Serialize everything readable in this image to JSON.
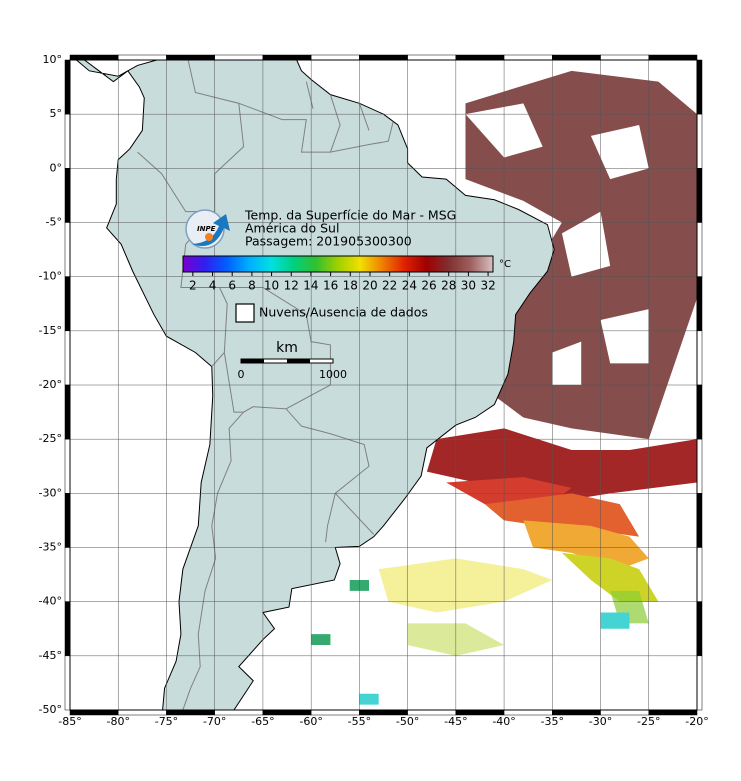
{
  "map": {
    "title": "Temp. da Superfície do Mar - MSG",
    "subtitle": "América do Sul",
    "pass": "Passagem: 201905300300",
    "logo": "INPE",
    "xlim": [
      -85,
      -20
    ],
    "ylim": [
      -50,
      10
    ],
    "xticks": [
      {
        "value": -85,
        "label": "-85°"
      },
      {
        "value": -80,
        "label": "-80°"
      },
      {
        "value": -75,
        "label": "-75°"
      },
      {
        "value": -70,
        "label": "-70°"
      },
      {
        "value": -65,
        "label": "-65°"
      },
      {
        "value": -60,
        "label": "-60°"
      },
      {
        "value": -55,
        "label": "-55°"
      },
      {
        "value": -50,
        "label": "-50°"
      },
      {
        "value": -45,
        "label": "-45°"
      },
      {
        "value": -40,
        "label": "-40°"
      },
      {
        "value": -35,
        "label": "-35°"
      },
      {
        "value": -30,
        "label": "-30°"
      },
      {
        "value": -25,
        "label": "-25°"
      },
      {
        "value": -20,
        "label": "-20°"
      }
    ],
    "yticks": [
      {
        "value": 10,
        "label": "10°"
      },
      {
        "value": 5,
        "label": "5°"
      },
      {
        "value": 0,
        "label": "0°"
      },
      {
        "value": -5,
        "label": "-5°"
      },
      {
        "value": -10,
        "label": "-10°"
      },
      {
        "value": -15,
        "label": "-15°"
      },
      {
        "value": -20,
        "label": "-20°"
      },
      {
        "value": -25,
        "label": "-25°"
      },
      {
        "value": -30,
        "label": "-30°"
      },
      {
        "value": -35,
        "label": "-35°"
      },
      {
        "value": -40,
        "label": "-40°"
      },
      {
        "value": -45,
        "label": "-45°"
      },
      {
        "value": -50,
        "label": "-50°"
      }
    ],
    "grid": true,
    "colorbar": {
      "lim": [
        1,
        32.5
      ],
      "ticks": [
        2,
        4,
        6,
        8,
        10,
        12,
        14,
        16,
        18,
        20,
        22,
        24,
        26,
        28,
        30,
        32
      ],
      "unit": "°C",
      "colors": [
        "#7a00d0",
        "#3020f0",
        "#0060ff",
        "#00b0ff",
        "#00e0e0",
        "#00d080",
        "#30c030",
        "#a0d000",
        "#f0e000",
        "#f08000",
        "#e02000",
        "#a00000",
        "#803030",
        "#a06060",
        "#d8c0c0"
      ]
    },
    "legend": "Nuvens/Ausencia de dados",
    "scale": {
      "unit": "km",
      "labels": [
        0,
        1000
      ]
    }
  }
}
